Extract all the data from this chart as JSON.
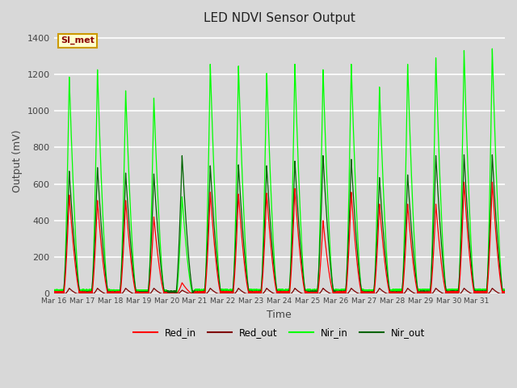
{
  "title": "LED NDVI Sensor Output",
  "xlabel": "Time",
  "ylabel": "Output (mV)",
  "ylim": [
    0,
    1450
  ],
  "yticks": [
    0,
    200,
    400,
    600,
    800,
    1000,
    1200,
    1400
  ],
  "background_color": "#d8d8d8",
  "plot_bg_color": "#d8d8d8",
  "grid_color": "#ffffff",
  "annotation_text": "SI_met",
  "annotation_bg": "#ffffcc",
  "annotation_border": "#cc9900",
  "legend_entries": [
    "Red_in",
    "Red_out",
    "Nir_in",
    "Nir_out"
  ],
  "colors": {
    "Red_in": "#ff0000",
    "Red_out": "#800000",
    "Nir_in": "#00ff00",
    "Nir_out": "#006400"
  },
  "x_tick_labels": [
    "Mar 16",
    "Mar 17",
    "Mar 18",
    "Mar 19",
    "Mar 20",
    "Mar 21",
    "Mar 22",
    "Mar 23",
    "Mar 24",
    "Mar 25",
    "Mar 26",
    "Mar 27",
    "Mar 28",
    "Mar 29",
    "Mar 30",
    "Mar 31"
  ],
  "num_days": 16,
  "nir_in_peaks": [
    1185,
    1225,
    1110,
    1070,
    530,
    1255,
    1245,
    1205,
    1255,
    1225,
    1255,
    1130,
    1255,
    1290,
    1330,
    1340
  ],
  "nir_out_peaks": [
    670,
    690,
    660,
    655,
    755,
    700,
    705,
    700,
    725,
    755,
    735,
    635,
    650,
    755,
    760,
    760
  ],
  "red_in_peaks": [
    540,
    510,
    510,
    420,
    60,
    555,
    545,
    550,
    575,
    400,
    555,
    490,
    490,
    490,
    610,
    610
  ],
  "red_out_peaks": [
    30,
    30,
    30,
    30,
    20,
    30,
    30,
    30,
    30,
    30,
    30,
    30,
    30,
    30,
    30,
    30
  ]
}
